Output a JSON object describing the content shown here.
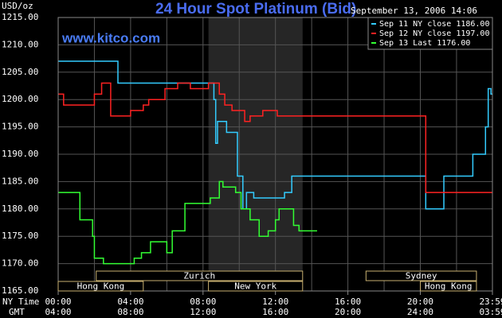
{
  "chart_data": {
    "type": "step-line",
    "title": "24 Hour Spot Platinum (Bid)",
    "timestamp": "September 13, 2006 14:06",
    "watermark": "www.kitco.com",
    "y_label": "USD/oz",
    "x_row_label": "NY Time",
    "x2_row_label": "GMT",
    "xlim": [
      0,
      23.983
    ],
    "ylim": [
      1165,
      1215
    ],
    "yticks": [
      {
        "value": 1165,
        "label": "1165.00"
      },
      {
        "value": 1170,
        "label": "1170.00"
      },
      {
        "value": 1175,
        "label": "1175.00"
      },
      {
        "value": 1180,
        "label": "1180.00"
      },
      {
        "value": 1185,
        "label": "1185.00"
      },
      {
        "value": 1190,
        "label": "1190.00"
      },
      {
        "value": 1195,
        "label": "1195.00"
      },
      {
        "value": 1200,
        "label": "1200.00"
      },
      {
        "value": 1205,
        "label": "1205.00"
      },
      {
        "value": 1210,
        "label": "1210.00"
      },
      {
        "value": 1215,
        "label": "1215.00"
      }
    ],
    "xticks": [
      {
        "value": 0,
        "label": "00:00"
      },
      {
        "value": 4,
        "label": "04:00"
      },
      {
        "value": 8,
        "label": "08:00"
      },
      {
        "value": 12,
        "label": "12:00"
      },
      {
        "value": 16,
        "label": "16:00"
      },
      {
        "value": 20,
        "label": "20:00"
      },
      {
        "value": 23.983,
        "label": "23:59"
      }
    ],
    "x2_labels": [
      "04:00",
      "08:00",
      "12:00",
      "16:00",
      "20:00",
      "24:00",
      "03:59"
    ],
    "grid_step": 2,
    "highlight": [
      8.3,
      13.5
    ],
    "sessions": [
      {
        "name": "Zurich",
        "start": 2.1,
        "end": 13.5,
        "row": 0
      },
      {
        "name": "Sydney",
        "start": 17,
        "end": 23.1,
        "row": 0
      },
      {
        "name": "Hong Kong",
        "start": 0,
        "end": 4.7,
        "row": 1
      },
      {
        "name": "New York",
        "start": 8.3,
        "end": 13.5,
        "row": 1
      },
      {
        "name": "Hong Kong",
        "start": 20,
        "end": 23.1,
        "row": 1
      }
    ],
    "series": [
      {
        "name": "Sep 11 NY close 1186.00",
        "color": "#33ccff",
        "x": [
          0,
          3.3,
          8.6,
          8.7,
          8.8,
          9.3,
          9.9,
          10.2,
          10.4,
          10.8,
          12.5,
          12.9,
          20.3,
          21.3,
          22.9,
          23.6,
          23.75,
          23.9,
          23.983
        ],
        "values": [
          1207,
          1203,
          1200,
          1192,
          1196,
          1194,
          1186,
          1180,
          1183,
          1182,
          1183,
          1186,
          1180,
          1186,
          1190,
          1195,
          1202,
          1201,
          1201
        ]
      },
      {
        "name": "Sep 12 NY close 1197.00",
        "color": "#ff2222",
        "x": [
          0,
          0.3,
          2.0,
          2.4,
          2.9,
          4.0,
          4.7,
          5.0,
          5.9,
          6.6,
          7.3,
          8.3,
          8.9,
          9.2,
          9.6,
          10.3,
          10.6,
          11.3,
          12.1,
          20.3,
          23.983
        ],
        "values": [
          1201,
          1199,
          1201,
          1203,
          1197,
          1198,
          1199,
          1200,
          1202,
          1203,
          1202,
          1203,
          1201,
          1199,
          1198,
          1196,
          1197,
          1198,
          1197,
          1183,
          1183
        ]
      },
      {
        "name": "Sep 13 Last 1176.00",
        "color": "#33ff33",
        "x": [
          0,
          1.2,
          1.9,
          2.0,
          2.5,
          4.2,
          4.6,
          5.1,
          6.0,
          6.3,
          7.0,
          8.4,
          8.9,
          9.1,
          9.8,
          10.1,
          10.6,
          11.1,
          11.6,
          12.0,
          12.2,
          13.0,
          13.3,
          14.3
        ],
        "values": [
          1183,
          1178,
          1175,
          1171,
          1170,
          1171,
          1172,
          1174,
          1172,
          1176,
          1181,
          1182,
          1185,
          1184,
          1183,
          1180,
          1178,
          1175,
          1176,
          1178,
          1180,
          1177,
          1176,
          1176
        ]
      }
    ]
  }
}
